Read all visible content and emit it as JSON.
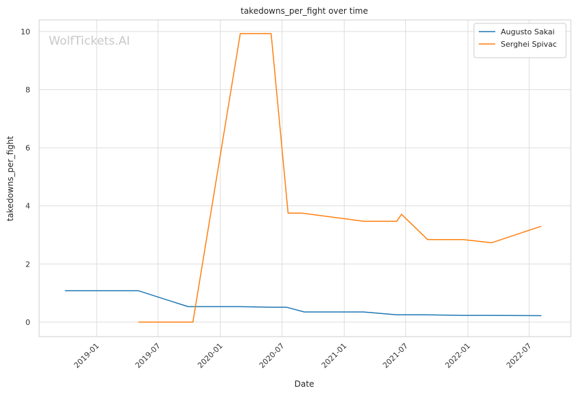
{
  "chart_data": {
    "type": "line",
    "title": "takedowns_per_fight over time",
    "xlabel": "Date",
    "ylabel": "takedowns_per_fight",
    "watermark": "WolfTickets.AI",
    "xlim": [
      "2018-07-15",
      "2022-11-01"
    ],
    "ylim": [
      -0.5,
      10.4
    ],
    "x_ticks": [
      "2019-01",
      "2019-07",
      "2020-01",
      "2020-07",
      "2021-01",
      "2021-07",
      "2022-01",
      "2022-07"
    ],
    "y_ticks": [
      0,
      2,
      4,
      6,
      8,
      10
    ],
    "grid": true,
    "legend": "top-right",
    "series": [
      {
        "name": "Augusto Sakai",
        "color": "#1f77b4",
        "points": [
          [
            "2018-09-29",
            1.08
          ],
          [
            "2019-05-04",
            1.08
          ],
          [
            "2019-09-28",
            0.53
          ],
          [
            "2020-03-01",
            0.53
          ],
          [
            "2020-06-01",
            0.51
          ],
          [
            "2020-07-15",
            0.51
          ],
          [
            "2020-09-05",
            0.35
          ],
          [
            "2021-02-27",
            0.35
          ],
          [
            "2021-06-05",
            0.25
          ],
          [
            "2021-08-28",
            0.25
          ],
          [
            "2021-12-18",
            0.23
          ],
          [
            "2022-03-01",
            0.23
          ],
          [
            "2022-08-06",
            0.22
          ]
        ]
      },
      {
        "name": "Serghei Spivac",
        "color": "#ff7f0e",
        "points": [
          [
            "2019-05-04",
            0.0
          ],
          [
            "2019-10-12",
            0.0
          ],
          [
            "2020-02-29",
            9.93
          ],
          [
            "2020-05-30",
            9.93
          ],
          [
            "2020-07-19",
            3.75
          ],
          [
            "2020-08-29",
            3.75
          ],
          [
            "2021-02-27",
            3.47
          ],
          [
            "2021-06-05",
            3.47
          ],
          [
            "2021-06-19",
            3.71
          ],
          [
            "2021-09-04",
            2.84
          ],
          [
            "2021-12-18",
            2.84
          ],
          [
            "2022-03-12",
            2.73
          ],
          [
            "2022-08-06",
            3.3
          ]
        ]
      }
    ]
  }
}
